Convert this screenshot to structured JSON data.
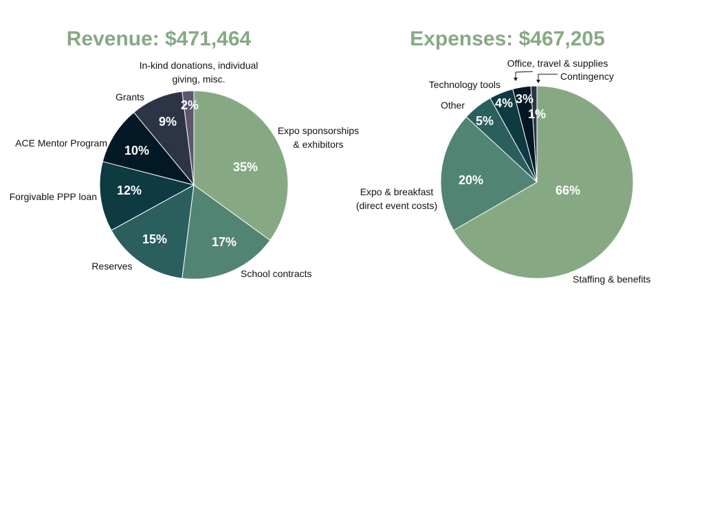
{
  "colors": {
    "title": "#86a984",
    "label_on_slice": "#ffffff",
    "label_outside": "#111111"
  },
  "chart_data": [
    {
      "type": "pie",
      "title": "Revenue: $471,464",
      "slices": [
        {
          "label": "Expo sponsorships & exhibitors",
          "label_lines": [
            "Expo sponsorships",
            "& exhibitors"
          ],
          "value": 35,
          "value_label": "35%",
          "color": "#86a984"
        },
        {
          "label": "School contracts",
          "label_lines": [
            "School contracts"
          ],
          "value": 17,
          "value_label": "17%",
          "color": "#528474"
        },
        {
          "label": "Reserves",
          "label_lines": [
            "Reserves"
          ],
          "value": 15,
          "value_label": "15%",
          "color": "#2a5f5e"
        },
        {
          "label": "Forgivable PPP loan",
          "label_lines": [
            "Forgivable PPP loan"
          ],
          "value": 12,
          "value_label": "12%",
          "color": "#0e3a42"
        },
        {
          "label": "ACE Mentor Program",
          "label_lines": [
            "ACE Mentor Program"
          ],
          "value": 10,
          "value_label": "10%",
          "color": "#021824"
        },
        {
          "label": "Grants",
          "label_lines": [
            "Grants"
          ],
          "value": 9,
          "value_label": "9%",
          "color": "#2d3446"
        },
        {
          "label": "In-kind donations, individual giving, misc.",
          "label_lines": [
            "In-kind donations, individual",
            "giving, misc."
          ],
          "value": 2,
          "value_label": "2%",
          "color": "#5e5670"
        }
      ]
    },
    {
      "type": "pie",
      "title": "Expenses: $467,205",
      "slices": [
        {
          "label": "Staffing & benefits",
          "label_lines": [
            "Staffing & benefits"
          ],
          "value": 66,
          "value_label": "66%",
          "color": "#86a984"
        },
        {
          "label": "Expo & breakfast (direct event costs)",
          "label_lines": [
            "Expo & breakfast",
            "(direct event costs)"
          ],
          "value": 20,
          "value_label": "20%",
          "color": "#528474"
        },
        {
          "label": "Other",
          "label_lines": [
            "Other"
          ],
          "value": 5,
          "value_label": "5%",
          "color": "#2a5f5e"
        },
        {
          "label": "Technology tools",
          "label_lines": [
            "Technology tools"
          ],
          "value": 4,
          "value_label": "4%",
          "color": "#0e3a42"
        },
        {
          "label": "Office, travel & supplies",
          "label_lines": [
            "Office, travel & supplies"
          ],
          "value": 3,
          "value_label": "3%",
          "color": "#021824"
        },
        {
          "label": "Contingency",
          "label_lines": [
            "Contingency"
          ],
          "value": 1,
          "value_label": "1%",
          "color": "#2d3446"
        }
      ]
    }
  ]
}
